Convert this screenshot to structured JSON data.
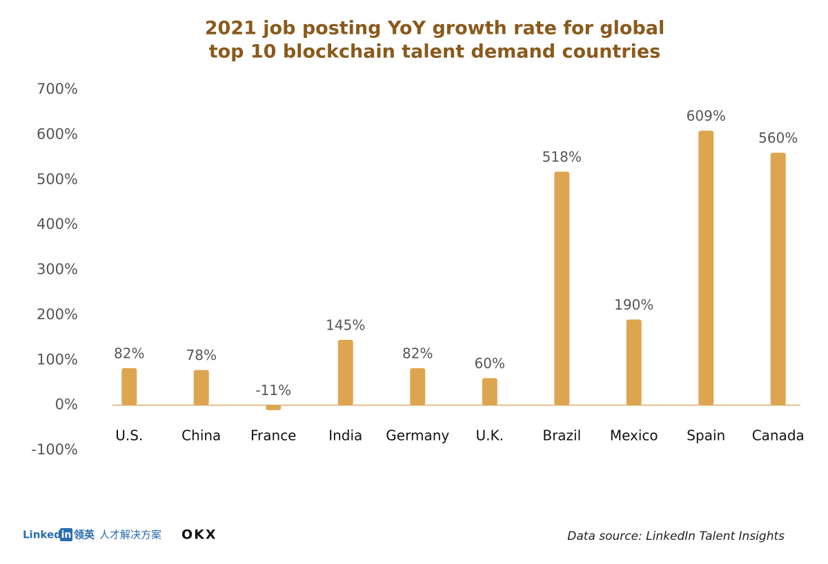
{
  "chart_data": {
    "type": "bar",
    "title": [
      "2021 job posting YoY growth rate for global",
      "top 10 blockchain talent demand countries"
    ],
    "categories": [
      "U.S.",
      "China",
      "France",
      "India",
      "Germany",
      "U.K.",
      "Brazil",
      "Mexico",
      "Spain",
      "Canada"
    ],
    "values": [
      82,
      78,
      -11,
      145,
      82,
      60,
      518,
      190,
      609,
      560
    ],
    "value_labels": [
      "82%",
      "78%",
      "-11%",
      "145%",
      "82%",
      "60%",
      "518%",
      "190%",
      "609%",
      "560%"
    ],
    "color": "#dea550",
    "ylim": [
      -100,
      700
    ],
    "yticks": [
      {
        "value": -100,
        "label": "-100%"
      },
      {
        "value": 0,
        "label": "0%"
      },
      {
        "value": 100,
        "label": "100%"
      },
      {
        "value": 200,
        "label": "200%"
      },
      {
        "value": 300,
        "label": "300%"
      },
      {
        "value": 400,
        "label": "400%"
      },
      {
        "value": 500,
        "label": "500%"
      },
      {
        "value": 600,
        "label": "600%"
      },
      {
        "value": 700,
        "label": "700%"
      }
    ],
    "grid": false
  },
  "footer": {
    "logo_linked": "Linked",
    "logo_in": "in",
    "logo_cn": "领英",
    "logo_cn_sub": "人才解决方案",
    "logo_okx": "OKX",
    "source": "Data source: LinkedIn Talent Insights"
  }
}
